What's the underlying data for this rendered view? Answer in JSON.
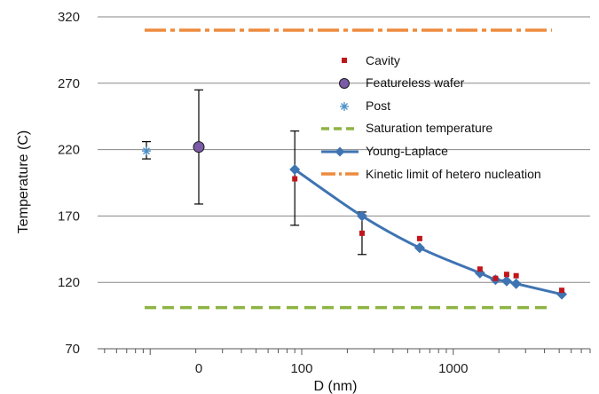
{
  "chart_data": {
    "type": "scatter",
    "ylabel": "Temperature (C)",
    "xlabel": "D (nm)",
    "ylim": [
      70,
      320
    ],
    "yticks": [
      70,
      120,
      170,
      220,
      270,
      320
    ],
    "x_scale": "log",
    "xlim": [
      4.5,
      8000
    ],
    "xticks": [
      {
        "value": 100,
        "label": "100"
      },
      {
        "value": 1000,
        "label": "1000"
      }
    ],
    "x_special_ticks": [
      {
        "label": "0"
      }
    ],
    "grid": "horizontal",
    "legend_position": "top-right",
    "colors": {
      "cavity": "#c0171c",
      "featureless": "#7b5aa6",
      "post": "#4a90c8",
      "saturation": "#8db443",
      "young_laplace": "#3f74b3",
      "kinetic": "#ee8a3c",
      "gridline": "#878787",
      "errorbar": "#000000"
    },
    "series": [
      {
        "name": "Cavity",
        "marker": "square",
        "points": [
          {
            "x": 90,
            "y": 198
          },
          {
            "x": 250,
            "y": 157
          },
          {
            "x": 600,
            "y": 153
          },
          {
            "x": 1500,
            "y": 130
          },
          {
            "x": 1900,
            "y": 123
          },
          {
            "x": 2250,
            "y": 126
          },
          {
            "x": 2600,
            "y": 125
          },
          {
            "x": 5200,
            "y": 114
          }
        ]
      },
      {
        "name": "Featureless wafer",
        "marker": "circle",
        "points": [
          {
            "x": "0",
            "y": 222,
            "err_plus": 43,
            "err_minus": 43
          }
        ]
      },
      {
        "name": "Post",
        "marker": "asterisk",
        "points": [
          {
            "x": "",
            "y": 219,
            "err_plus": 7,
            "err_minus": 6
          }
        ]
      },
      {
        "name": "Saturation temperature",
        "style": "dashed",
        "y": 101
      },
      {
        "name": "Young-Laplace",
        "marker": "diamond",
        "points": [
          {
            "x": 90,
            "y": 205,
            "err_plus": 29,
            "err_minus": 42
          },
          {
            "x": 250,
            "y": 170,
            "err_plus": 3,
            "err_minus": 29
          },
          {
            "x": 600,
            "y": 146
          },
          {
            "x": 1500,
            "y": 127
          },
          {
            "x": 1900,
            "y": 122
          },
          {
            "x": 2250,
            "y": 121
          },
          {
            "x": 2600,
            "y": 119
          },
          {
            "x": 5200,
            "y": 111
          }
        ]
      },
      {
        "name": "Kinetic limit of hetero nucleation",
        "style": "dash-dot",
        "y": 310
      }
    ]
  }
}
